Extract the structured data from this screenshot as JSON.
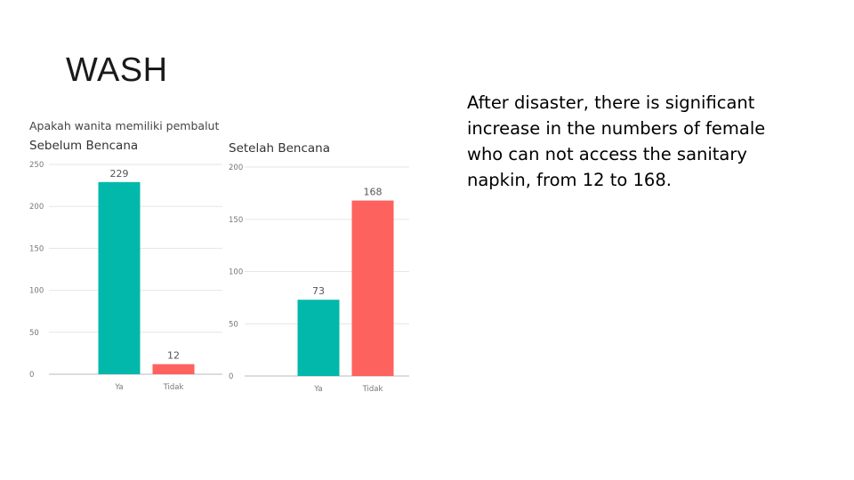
{
  "slide": {
    "title": "WASH",
    "body": "After disaster, there is significant increase in the numbers of female who can not access the sanitary napkin, from 12 to 168."
  },
  "question": "Apakah wanita memiliki pembalut",
  "colors": {
    "ya": "#01B8AA",
    "tidak": "#FD625E",
    "grid": "#e6e6e6",
    "axis": "#bbbbbb"
  },
  "chart_data": [
    {
      "type": "bar",
      "title": "Sebelum Bencana",
      "categories": [
        "Ya",
        "Tidak"
      ],
      "values": [
        229,
        12
      ],
      "yticks": [
        "0",
        "50",
        "100",
        "150",
        "200",
        "250"
      ],
      "ylim": [
        0,
        250
      ],
      "data_labels": [
        "229",
        "12"
      ],
      "grid": true,
      "legend": "none"
    },
    {
      "type": "bar",
      "title": "Setelah Bencana",
      "categories": [
        "Ya",
        "Tidak"
      ],
      "values": [
        73,
        168
      ],
      "yticks": [
        "0",
        "50",
        "100",
        "150",
        "200"
      ],
      "ylim": [
        0,
        200
      ],
      "data_labels": [
        "73",
        "168"
      ],
      "grid": true,
      "legend": "none"
    }
  ]
}
